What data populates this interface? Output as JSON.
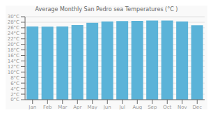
{
  "chart_data": {
    "type": "bar",
    "title": "Average Monthly San Pedro sea Temperatures (°C )",
    "categories": [
      "Jan",
      "Feb",
      "Mar",
      "Apr",
      "May",
      "Jun",
      "Jul",
      "Aug",
      "Sep",
      "Oct",
      "Nov",
      "Dec"
    ],
    "values": [
      26.5,
      26.4,
      26.5,
      27.0,
      27.8,
      28.3,
      28.4,
      28.5,
      28.6,
      28.6,
      28.3,
      26.9
    ],
    "color": "#5bb3d8",
    "ylim": [
      0,
      30
    ],
    "yticks": [
      {
        "value": 0,
        "label": "0°C"
      },
      {
        "value": 2,
        "label": "2°C"
      },
      {
        "value": 4,
        "label": "4°C"
      },
      {
        "value": 6,
        "label": "6°C"
      },
      {
        "value": 8,
        "label": "8°C"
      },
      {
        "value": 10,
        "label": "10°C"
      },
      {
        "value": 12,
        "label": "12°C"
      },
      {
        "value": 14,
        "label": "14°C"
      },
      {
        "value": 16,
        "label": "16°C"
      },
      {
        "value": 18,
        "label": "18°C"
      },
      {
        "value": 20,
        "label": "20°C"
      },
      {
        "value": 22,
        "label": "22°C"
      },
      {
        "value": 24,
        "label": "24°C"
      },
      {
        "value": 26,
        "label": "26°C"
      },
      {
        "value": 28,
        "label": "28°C"
      },
      {
        "value": 30,
        "label": "30°C"
      }
    ],
    "grid": true
  }
}
